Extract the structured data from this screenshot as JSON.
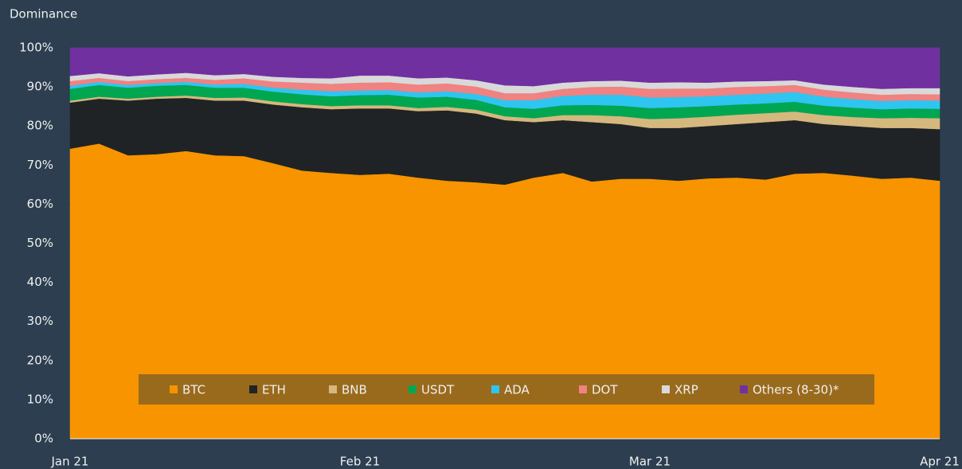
{
  "chart_data": {
    "type": "stacked_area",
    "y_label": "Dominance",
    "categories": [
      "Jan 21",
      null,
      null,
      null,
      null,
      null,
      null,
      null,
      null,
      null,
      "Feb 21",
      null,
      null,
      null,
      null,
      null,
      null,
      null,
      null,
      null,
      "Mar 21",
      null,
      null,
      null,
      null,
      null,
      null,
      null,
      null,
      null,
      "Apr 21"
    ],
    "ylim": [
      0,
      100
    ],
    "yticks": [
      {
        "value": 0,
        "label": "0%"
      },
      {
        "value": 10,
        "label": "10%"
      },
      {
        "value": 20,
        "label": "20%"
      },
      {
        "value": 30,
        "label": "30%"
      },
      {
        "value": 40,
        "label": "40%"
      },
      {
        "value": 50,
        "label": "50%"
      },
      {
        "value": 60,
        "label": "60%"
      },
      {
        "value": 70,
        "label": "70%"
      },
      {
        "value": 80,
        "label": "80%"
      },
      {
        "value": 90,
        "label": "90%"
      },
      {
        "value": 100,
        "label": "100%"
      }
    ],
    "legend_position": "bottom",
    "series": [
      {
        "name": "BTC",
        "color": "#f79400",
        "values": [
          74.2,
          75.5,
          72.5,
          72.8,
          73.6,
          72.5,
          72.3,
          70.5,
          68.6,
          68,
          67.5,
          67.8,
          66.8,
          66,
          65.6,
          65,
          66.8,
          68,
          65.8,
          66.5,
          66.5,
          66,
          66.6,
          66.8,
          66.3,
          67.8,
          68,
          67.3,
          66.5,
          66.8,
          66
        ]
      },
      {
        "name": "ETH",
        "color": "#1f2326",
        "values": [
          11.8,
          11.5,
          14,
          14.2,
          13.6,
          14,
          14.2,
          15,
          16.2,
          16.3,
          17,
          16.7,
          17,
          18,
          17.6,
          16.5,
          14.2,
          13.5,
          15.2,
          14,
          13,
          13.5,
          13.4,
          13.7,
          14.7,
          13.7,
          12.5,
          12.7,
          13,
          12.7,
          13.2
        ]
      },
      {
        "name": "BNB",
        "color": "#d5b87e",
        "values": [
          0.5,
          0.5,
          0.5,
          0.5,
          0.6,
          0.7,
          0.8,
          0.8,
          0.8,
          0.8,
          0.8,
          0.8,
          0.8,
          0.9,
          1,
          1,
          1,
          1.3,
          1.8,
          2,
          2.3,
          2.5,
          2.4,
          2.4,
          2.3,
          2.2,
          2.3,
          2.3,
          2.5,
          2.6,
          2.8
        ]
      },
      {
        "name": "USDT",
        "color": "#00a650",
        "values": [
          3,
          3,
          2.8,
          2.8,
          2.7,
          2.6,
          2.5,
          2.5,
          2.5,
          2.5,
          2.6,
          2.7,
          2.7,
          2.6,
          2.5,
          2.3,
          2.4,
          2.5,
          2.6,
          2.7,
          2.8,
          2.8,
          2.7,
          2.6,
          2.5,
          2.5,
          2.4,
          2.4,
          2.3,
          2.4,
          2.4
        ]
      },
      {
        "name": "ADA",
        "color": "#2ec5f0",
        "values": [
          0.8,
          0.8,
          0.7,
          0.7,
          0.8,
          0.8,
          1,
          1,
          1.2,
          1.3,
          1.2,
          1.2,
          1.3,
          1.4,
          1.5,
          1.8,
          2.2,
          2.4,
          2.6,
          2.8,
          2.7,
          2.6,
          2.5,
          2.5,
          2.5,
          2.5,
          2.3,
          2.2,
          2.1,
          2.1,
          2.1
        ]
      },
      {
        "name": "DOT",
        "color": "#f08282",
        "values": [
          1.2,
          1,
          1,
          1,
          1,
          1.2,
          1.4,
          1.6,
          1.8,
          1.9,
          2,
          2,
          2,
          2,
          1.9,
          1.8,
          1.8,
          1.8,
          2,
          2.1,
          2.2,
          2.2,
          2,
          2,
          1.9,
          1.8,
          1.8,
          1.7,
          1.6,
          1.6,
          1.6
        ]
      },
      {
        "name": "XRP",
        "color": "#d9d9d9",
        "values": [
          1.3,
          1.2,
          1.2,
          1.2,
          1.3,
          1.2,
          1.1,
          1.2,
          1.2,
          1.4,
          1.8,
          1.7,
          1.6,
          1.5,
          1.6,
          2,
          1.8,
          1.6,
          1.5,
          1.5,
          1.6,
          1.6,
          1.5,
          1.4,
          1.3,
          1.2,
          1.3,
          1.4,
          1.5,
          1.5,
          1.6
        ]
      },
      {
        "name": "Others (8-30)*",
        "color": "#7030a0",
        "values": [
          7.2,
          6.5,
          7.3,
          6.8,
          6.4,
          7,
          6.7,
          7.4,
          7.7,
          7.8,
          7.1,
          7.1,
          7.8,
          7.6,
          8.3,
          9.6,
          9.8,
          8.9,
          8.5,
          8.4,
          8.9,
          8.8,
          8.9,
          8.6,
          8.5,
          8.3,
          9.4,
          10,
          10.5,
          10.3,
          10.3
        ]
      }
    ]
  }
}
